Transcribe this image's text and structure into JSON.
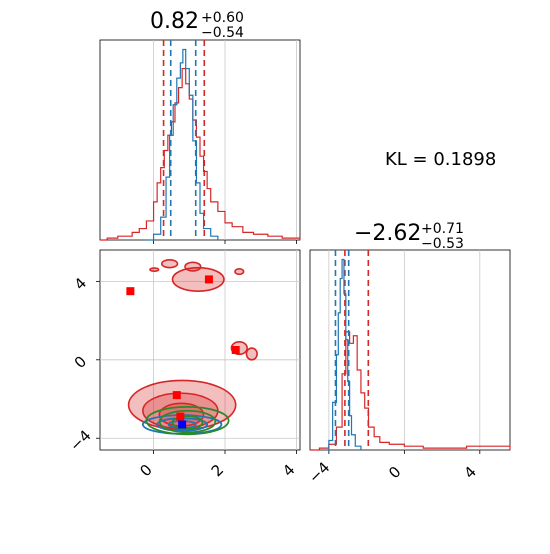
{
  "colors": {
    "red": "#d62728",
    "blue": "#1f77b4",
    "green": "#2a8a2a",
    "grid": "#c8c8c8",
    "marker_blue": "#0000ff",
    "marker_red": "#ff0000"
  },
  "chart_data": [
    {
      "type": "histogram",
      "panel": "top-left",
      "title": {
        "value": "0.82",
        "plus": "+0.60",
        "minus": "−0.54"
      },
      "x_range": [
        -1.5,
        4.1
      ],
      "x_ticks": [
        0,
        2,
        4
      ],
      "y_range": [
        0,
        1.05
      ],
      "series": [
        {
          "name": "",
          "color": "red",
          "lines": [
            0.28,
            1.42
          ],
          "values": [
            [
              -1.5,
              0
            ],
            [
              -1.3,
              0.01
            ],
            [
              -1.0,
              0.02
            ],
            [
              -0.8,
              0.02
            ],
            [
              -0.6,
              0.04
            ],
            [
              -0.4,
              0.06
            ],
            [
              -0.2,
              0.1
            ],
            [
              0.0,
              0.2
            ],
            [
              0.1,
              0.3
            ],
            [
              0.2,
              0.38
            ],
            [
              0.3,
              0.47
            ],
            [
              0.4,
              0.55
            ],
            [
              0.5,
              0.62
            ],
            [
              0.6,
              0.72
            ],
            [
              0.7,
              0.8
            ],
            [
              0.8,
              0.9
            ],
            [
              0.9,
              0.82
            ],
            [
              1.0,
              0.74
            ],
            [
              1.1,
              0.63
            ],
            [
              1.2,
              0.54
            ],
            [
              1.3,
              0.44
            ],
            [
              1.4,
              0.36
            ],
            [
              1.5,
              0.27
            ],
            [
              1.6,
              0.2
            ],
            [
              1.8,
              0.15
            ],
            [
              2.0,
              0.09
            ],
            [
              2.2,
              0.07
            ],
            [
              2.5,
              0.04
            ],
            [
              2.8,
              0.03
            ],
            [
              3.2,
              0.02
            ],
            [
              3.6,
              0.01
            ],
            [
              4.1,
              0
            ]
          ]
        },
        {
          "name": "",
          "color": "blue",
          "lines": [
            0.48,
            1.18
          ],
          "values": [
            [
              -0.2,
              0
            ],
            [
              0.0,
              0.03
            ],
            [
              0.2,
              0.12
            ],
            [
              0.35,
              0.33
            ],
            [
              0.45,
              0.55
            ],
            [
              0.55,
              0.71
            ],
            [
              0.65,
              0.85
            ],
            [
              0.75,
              0.93
            ],
            [
              0.82,
              1.0
            ],
            [
              0.9,
              0.9
            ],
            [
              1.0,
              0.76
            ],
            [
              1.1,
              0.52
            ],
            [
              1.2,
              0.3
            ],
            [
              1.3,
              0.14
            ],
            [
              1.4,
              0.06
            ],
            [
              1.6,
              0.02
            ],
            [
              1.8,
              0
            ]
          ]
        }
      ]
    },
    {
      "type": "histogram",
      "panel": "bottom-right",
      "title": {
        "value": "−2.62",
        "plus": "+0.71",
        "minus": "−0.53"
      },
      "x_range": [
        -5.0,
        5.6
      ],
      "x_ticks": [
        -4,
        0,
        4
      ],
      "y_range": [
        0,
        1.05
      ],
      "series": [
        {
          "name": "",
          "color": "red",
          "lines": [
            -3.15,
            -1.91
          ],
          "values": [
            [
              -5.0,
              0
            ],
            [
              -4.5,
              0.01
            ],
            [
              -4.0,
              0.03
            ],
            [
              -3.6,
              0.12
            ],
            [
              -3.3,
              0.4
            ],
            [
              -3.1,
              0.62
            ],
            [
              -2.9,
              0.56
            ],
            [
              -2.7,
              0.6
            ],
            [
              -2.5,
              0.42
            ],
            [
              -2.3,
              0.3
            ],
            [
              -2.1,
              0.22
            ],
            [
              -1.9,
              0.12
            ],
            [
              -1.6,
              0.07
            ],
            [
              -1.3,
              0.04
            ],
            [
              -0.8,
              0.03
            ],
            [
              0.0,
              0.02
            ],
            [
              1.0,
              0.01
            ],
            [
              2.0,
              0.01
            ],
            [
              3.3,
              0.02
            ],
            [
              4.0,
              0.02
            ],
            [
              5.0,
              0.02
            ],
            [
              5.6,
              0
            ]
          ]
        },
        {
          "name": "",
          "color": "blue",
          "lines": [
            -3.65,
            -2.95
          ],
          "values": [
            [
              -4.2,
              0
            ],
            [
              -4.0,
              0.05
            ],
            [
              -3.8,
              0.25
            ],
            [
              -3.6,
              0.5
            ],
            [
              -3.5,
              0.72
            ],
            [
              -3.4,
              0.9
            ],
            [
              -3.3,
              1.0
            ],
            [
              -3.2,
              0.82
            ],
            [
              -3.1,
              0.58
            ],
            [
              -3.0,
              0.36
            ],
            [
              -2.9,
              0.18
            ],
            [
              -2.8,
              0.08
            ],
            [
              -2.6,
              0.02
            ],
            [
              -2.3,
              0
            ]
          ]
        }
      ]
    },
    {
      "type": "contour",
      "panel": "bottom-left",
      "x_range": [
        -1.5,
        4.1
      ],
      "y_range": [
        -4.6,
        5.6
      ],
      "x_ticks": [
        0,
        2,
        4
      ],
      "y_ticks": [
        -4,
        0,
        4
      ],
      "red_markers": [
        [
          -0.65,
          3.5
        ],
        [
          1.55,
          4.1
        ],
        [
          2.3,
          0.5
        ],
        [
          0.65,
          -1.8
        ],
        [
          0.75,
          -2.9
        ]
      ],
      "blue_markers": [
        [
          0.8,
          -3.3
        ]
      ],
      "blobs": [
        {
          "color": "red",
          "cx": 0.8,
          "cy": -2.3,
          "rx": 1.5,
          "ry": 1.25
        },
        {
          "color": "red",
          "cx": 0.75,
          "cy": -2.6,
          "rx": 1.05,
          "ry": 0.9
        },
        {
          "color": "red",
          "cx": 0.78,
          "cy": -2.8,
          "rx": 0.62,
          "ry": 0.58
        },
        {
          "color": "red",
          "cx": 1.25,
          "cy": 4.1,
          "rx": 0.72,
          "ry": 0.6
        },
        {
          "color": "red",
          "cx": 0.45,
          "cy": 4.9,
          "rx": 0.22,
          "ry": 0.2
        },
        {
          "color": "red",
          "cx": 1.1,
          "cy": 4.75,
          "rx": 0.22,
          "ry": 0.22
        },
        {
          "color": "red",
          "cx": 2.4,
          "cy": 0.6,
          "rx": 0.22,
          "ry": 0.32
        },
        {
          "color": "red",
          "cx": 2.75,
          "cy": 0.3,
          "rx": 0.15,
          "ry": 0.3
        },
        {
          "color": "red",
          "cx": 0.02,
          "cy": 4.6,
          "rx": 0.12,
          "ry": 0.08
        },
        {
          "color": "red",
          "cx": 2.4,
          "cy": 4.5,
          "rx": 0.12,
          "ry": 0.14
        }
      ],
      "contours": [
        {
          "color": "blue",
          "cx": 0.8,
          "cy": -3.3,
          "rx": 1.1,
          "ry": 0.48
        },
        {
          "color": "blue",
          "cx": 0.8,
          "cy": -3.3,
          "rx": 0.7,
          "ry": 0.32
        },
        {
          "color": "blue",
          "cx": 0.8,
          "cy": -3.3,
          "rx": 0.38,
          "ry": 0.18
        },
        {
          "color": "green",
          "cx": 0.95,
          "cy": -3.1,
          "rx": 1.15,
          "ry": 0.7
        },
        {
          "color": "green",
          "cx": 0.95,
          "cy": -3.15,
          "rx": 0.78,
          "ry": 0.55
        },
        {
          "color": "green",
          "cx": 0.95,
          "cy": -3.2,
          "rx": 0.42,
          "ry": 0.33
        }
      ]
    }
  ],
  "annotation": "KL = 0.1898"
}
